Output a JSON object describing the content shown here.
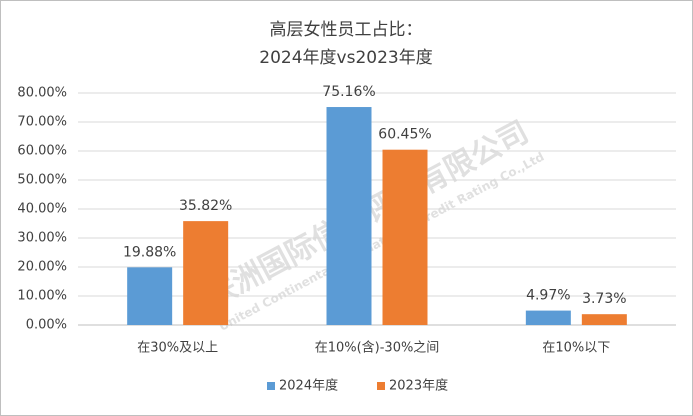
{
  "chart_data": {
    "type": "bar",
    "title": [
      "高层女性员工占比：",
      "2024年度vs2023年度"
    ],
    "categories": [
      "在30%及以上",
      "在10%(含)-30%之间",
      "在10%以下"
    ],
    "series": [
      {
        "name": "2024年度",
        "color": "#5b9bd5",
        "values": [
          19.88,
          75.16,
          4.97
        ],
        "value_labels": [
          "19.88%",
          "75.16%",
          "4.97%"
        ]
      },
      {
        "name": "2023年度",
        "color": "#ed7d31",
        "values": [
          35.82,
          60.45,
          3.73
        ],
        "value_labels": [
          "35.82%",
          "60.45%",
          "3.73%"
        ]
      }
    ],
    "ylim": [
      0,
      80
    ],
    "yticks": [
      {
        "value": 0,
        "label": "0.00%"
      },
      {
        "value": 10,
        "label": "10.00%"
      },
      {
        "value": 20,
        "label": "20.00%"
      },
      {
        "value": 30,
        "label": "30.00%"
      },
      {
        "value": 40,
        "label": "40.00%"
      },
      {
        "value": 50,
        "label": "50.00%"
      },
      {
        "value": 60,
        "label": "60.00%"
      },
      {
        "value": 70,
        "label": "70.00%"
      },
      {
        "value": 80,
        "label": "80.00%"
      }
    ],
    "grid": true,
    "legend": "bottom",
    "watermark": [
      "联洲国际信用评级有限公司",
      "United Continental International Credit Rating Co.,Ltd"
    ]
  }
}
